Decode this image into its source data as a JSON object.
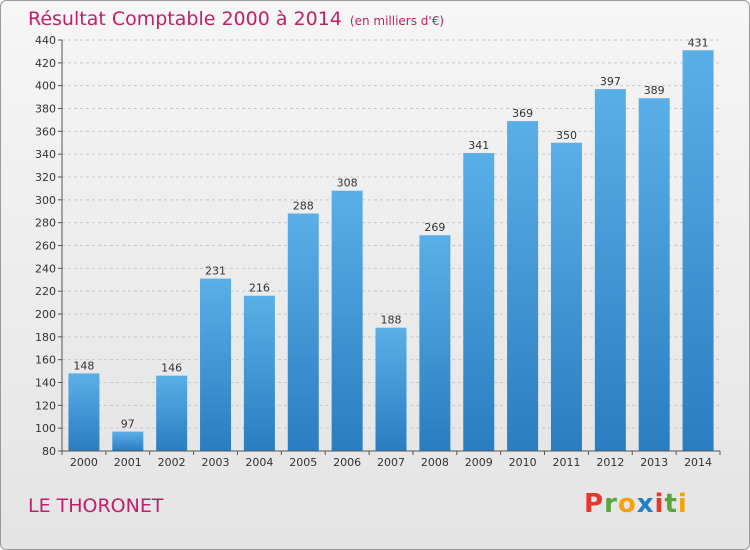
{
  "chart_data": {
    "type": "bar",
    "title": "Résultat Comptable 2000 à 2014",
    "subtitle": "(en milliers d'€)",
    "categories": [
      "2000",
      "2001",
      "2002",
      "2003",
      "2004",
      "2005",
      "2006",
      "2007",
      "2008",
      "2009",
      "2010",
      "2011",
      "2012",
      "2013",
      "2014"
    ],
    "values": [
      148,
      97,
      146,
      231,
      216,
      288,
      308,
      188,
      269,
      341,
      369,
      350,
      397,
      389,
      431
    ],
    "ylim": [
      80,
      440
    ],
    "ytick_step": 20,
    "grid": "horizontal dashed",
    "bar_color_top": "#5aafe8",
    "bar_color_bottom": "#2a7dc0",
    "title_color": "#c0206a"
  },
  "footer": {
    "commune": "LE THORONET",
    "logo": [
      "P",
      "r",
      "o",
      "x",
      "i",
      "t",
      "i"
    ],
    "logo_colors": [
      "#e8382c",
      "#5aa53a",
      "#f5a30a",
      "#1f7fc9",
      "#e8382c",
      "#5aa53a",
      "#f5a30a"
    ]
  }
}
